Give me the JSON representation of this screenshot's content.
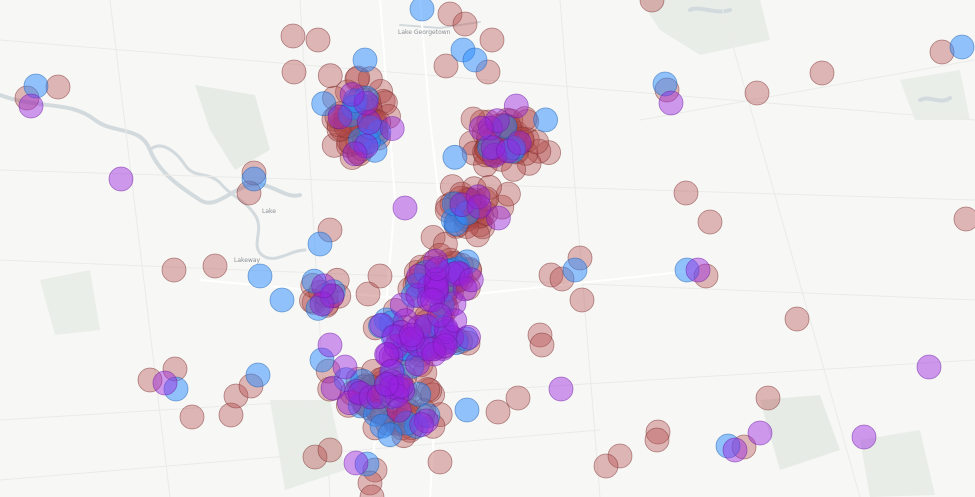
{
  "map": {
    "place_labels": [
      "Lake Georgetown",
      "Lake",
      "Lakeway"
    ],
    "colors": {
      "background": "#f7f7f5",
      "water": "#d6dde1",
      "park": "#e4ebe4",
      "road": "#ffffff",
      "road_minor": "#e9eae6"
    },
    "legend_colors": {
      "red": "#b24a4a",
      "blue": "#2a8cff",
      "purple": "#9a22e0"
    }
  }
}
